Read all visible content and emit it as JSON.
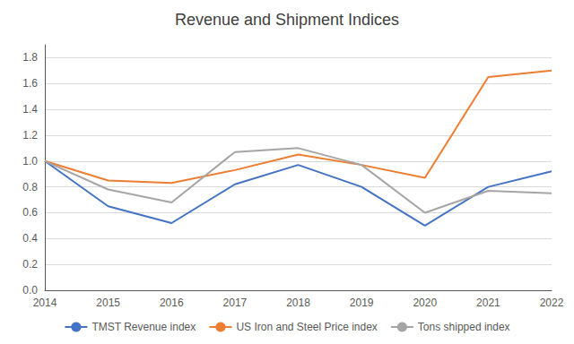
{
  "chart_data": {
    "type": "line",
    "title": "Revenue and Shipment Indices",
    "categories": [
      "2014",
      "2015",
      "2016",
      "2017",
      "2018",
      "2019",
      "2020",
      "2021",
      "2022"
    ],
    "series": [
      {
        "name": "TMST Revenue index",
        "color": "#4472C4",
        "values": [
          1.0,
          0.65,
          0.52,
          0.82,
          0.97,
          0.8,
          0.5,
          0.8,
          0.92
        ]
      },
      {
        "name": "US Iron and Steel Price index",
        "color": "#ED7D31",
        "values": [
          1.0,
          0.85,
          0.83,
          0.93,
          1.05,
          0.97,
          0.87,
          1.65,
          1.7
        ]
      },
      {
        "name": "Tons shipped index",
        "color": "#A5A5A5",
        "values": [
          1.0,
          0.78,
          0.68,
          1.07,
          1.1,
          0.97,
          0.6,
          0.77,
          0.75
        ]
      }
    ],
    "ylim": [
      0.0,
      1.9
    ],
    "yticks": [
      {
        "value": 0,
        "label": "0.0"
      },
      0.2,
      0.4,
      0.6,
      0.8,
      {
        "value": 1,
        "label": "1.0"
      },
      1.2,
      1.4,
      1.6,
      1.8
    ],
    "grid": true,
    "legend": "bottom"
  }
}
